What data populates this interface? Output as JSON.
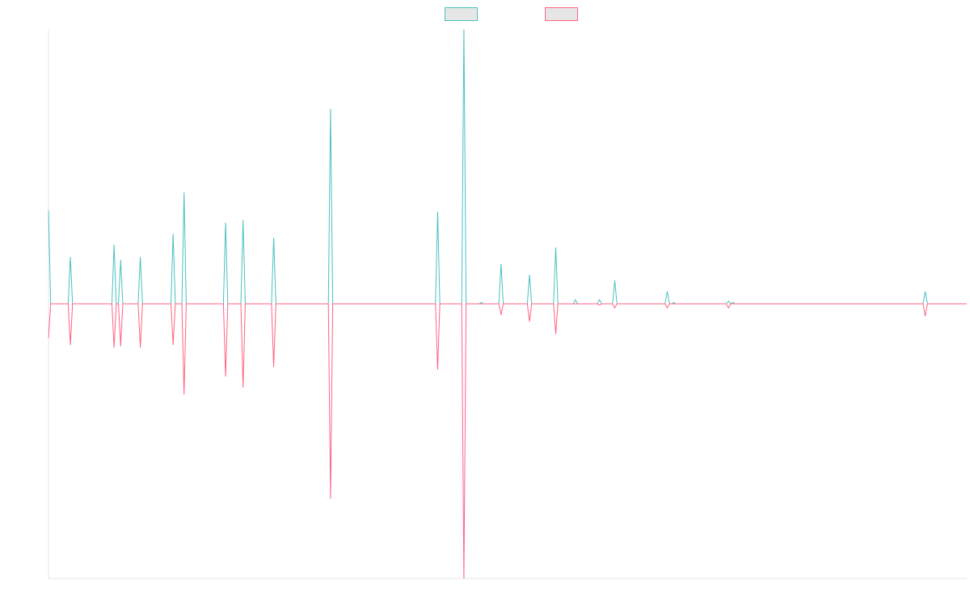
{
  "chart_data": {
    "type": "line",
    "title": "",
    "xlabel": "",
    "ylabel": "",
    "ylim": [
      -100,
      100
    ],
    "x_count": 421,
    "grid": false,
    "legend_position": "top-center",
    "colors": {
      "series_a": "#4bc0c0",
      "series_b": "#ff6384",
      "legend_fill": "#e6e6e6",
      "axis": "#e6e6e6"
    },
    "series": [
      {
        "name": "",
        "color": "#4bc0c0",
        "values": [
          [
            0,
            34
          ],
          [
            1,
            0
          ],
          [
            9,
            0
          ],
          [
            10,
            17
          ],
          [
            11,
            0
          ],
          [
            29,
            0
          ],
          [
            30,
            21.5
          ],
          [
            31,
            0
          ],
          [
            32,
            0
          ],
          [
            33,
            16
          ],
          [
            34,
            0
          ],
          [
            41,
            0
          ],
          [
            42,
            17
          ],
          [
            43,
            0
          ],
          [
            56,
            0
          ],
          [
            57,
            25.5
          ],
          [
            58,
            0
          ],
          [
            61,
            0
          ],
          [
            62,
            40.5
          ],
          [
            63,
            0
          ],
          [
            80,
            0
          ],
          [
            81,
            29.5
          ],
          [
            82,
            0
          ],
          [
            88,
            0
          ],
          [
            89,
            30.5
          ],
          [
            90,
            0
          ],
          [
            102,
            0
          ],
          [
            103,
            24
          ],
          [
            104,
            0
          ],
          [
            128,
            0
          ],
          [
            129,
            71
          ],
          [
            130,
            0
          ],
          [
            177,
            0
          ],
          [
            178,
            33.5
          ],
          [
            179,
            0
          ],
          [
            189,
            0
          ],
          [
            190,
            100
          ],
          [
            191,
            0
          ],
          [
            197,
            0
          ],
          [
            198,
            0.5
          ],
          [
            199,
            0
          ],
          [
            206,
            0
          ],
          [
            207,
            14.5
          ],
          [
            208,
            0
          ],
          [
            219,
            0
          ],
          [
            220,
            10.5
          ],
          [
            221,
            0
          ],
          [
            231,
            0
          ],
          [
            232,
            20.5
          ],
          [
            233,
            0
          ],
          [
            240,
            0
          ],
          [
            241,
            1.5
          ],
          [
            242,
            0
          ],
          [
            251,
            0
          ],
          [
            252,
            1.5
          ],
          [
            253,
            0
          ],
          [
            258,
            0
          ],
          [
            259,
            8.5
          ],
          [
            260,
            0
          ],
          [
            282,
            0
          ],
          [
            283,
            4.5
          ],
          [
            284,
            0
          ],
          [
            285,
            0
          ],
          [
            286,
            0.5
          ],
          [
            287,
            0
          ],
          [
            310,
            0
          ],
          [
            311,
            1
          ],
          [
            312,
            0
          ],
          [
            313,
            0.5
          ],
          [
            314,
            0
          ],
          [
            400,
            0
          ],
          [
            401,
            4.5
          ],
          [
            402,
            0
          ],
          [
            420,
            0
          ]
        ]
      },
      {
        "name": "",
        "color": "#ff6384",
        "values": [
          [
            0,
            -12.5
          ],
          [
            1,
            0
          ],
          [
            9,
            0
          ],
          [
            10,
            -15
          ],
          [
            11,
            0
          ],
          [
            29,
            0
          ],
          [
            30,
            -16
          ],
          [
            31,
            0
          ],
          [
            32,
            0
          ],
          [
            33,
            -15.5
          ],
          [
            34,
            0
          ],
          [
            41,
            0
          ],
          [
            42,
            -16
          ],
          [
            43,
            0
          ],
          [
            56,
            0
          ],
          [
            57,
            -15
          ],
          [
            58,
            0
          ],
          [
            61,
            0
          ],
          [
            62,
            -33
          ],
          [
            63,
            0
          ],
          [
            80,
            0
          ],
          [
            81,
            -26.5
          ],
          [
            82,
            0
          ],
          [
            88,
            0
          ],
          [
            89,
            -30.5
          ],
          [
            90,
            0
          ],
          [
            102,
            0
          ],
          [
            103,
            -23
          ],
          [
            104,
            0
          ],
          [
            128,
            0
          ],
          [
            129,
            -71
          ],
          [
            130,
            0
          ],
          [
            177,
            0
          ],
          [
            178,
            -24
          ],
          [
            179,
            0
          ],
          [
            189,
            0
          ],
          [
            190,
            -100
          ],
          [
            191,
            0
          ],
          [
            206,
            0
          ],
          [
            207,
            -4
          ],
          [
            208,
            0
          ],
          [
            219,
            0
          ],
          [
            220,
            -6.5
          ],
          [
            221,
            0
          ],
          [
            231,
            0
          ],
          [
            232,
            -11
          ],
          [
            233,
            0
          ],
          [
            251,
            0
          ],
          [
            252,
            -0.5
          ],
          [
            253,
            0
          ],
          [
            258,
            0
          ],
          [
            259,
            -1.5
          ],
          [
            260,
            0
          ],
          [
            282,
            0
          ],
          [
            283,
            -1.5
          ],
          [
            284,
            0
          ],
          [
            310,
            0
          ],
          [
            311,
            -1.5
          ],
          [
            312,
            0
          ],
          [
            400,
            0
          ],
          [
            401,
            -4.5
          ],
          [
            402,
            0
          ],
          [
            420,
            0
          ]
        ]
      }
    ]
  }
}
